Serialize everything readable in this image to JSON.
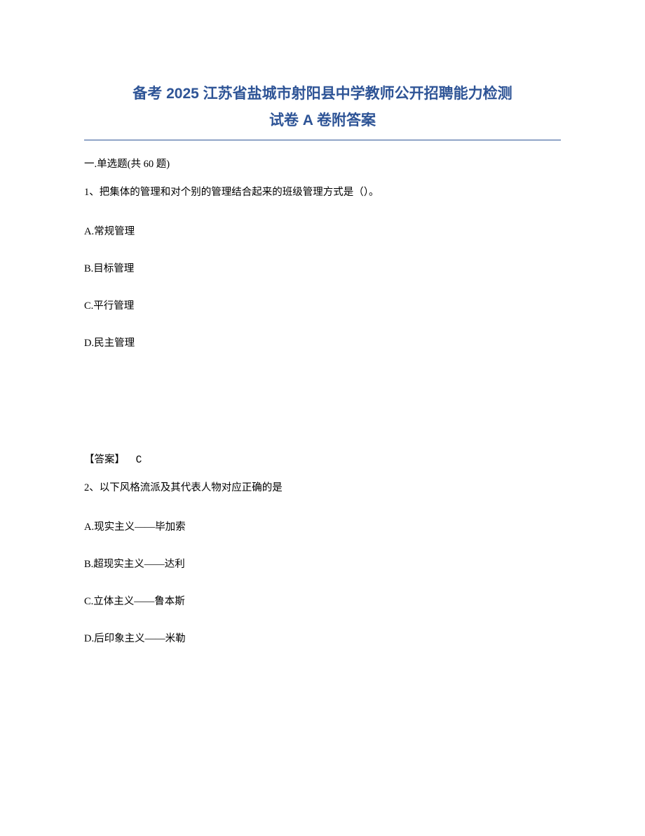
{
  "title": {
    "line1": "备考 2025 江苏省盐城市射阳县中学教师公开招聘能力检测",
    "line2": "试卷 A 卷附答案",
    "color": "#2e5496",
    "fontsize": 21
  },
  "section": {
    "header": "一.单选题(共 60 题)"
  },
  "questions": [
    {
      "number": "1",
      "text": "1、把集体的管理和对个别的管理结合起来的班级管理方式是（）。",
      "options": {
        "A": "A.常规管理",
        "B": "B.目标管理",
        "C": "C.平行管理",
        "D": "D.民主管理"
      },
      "answer_label": "【答案】",
      "answer_value": "C"
    },
    {
      "number": "2",
      "text": "2、以下风格流派及其代表人物对应正确的是",
      "options": {
        "A": "A.现实主义——毕加索",
        "B": "B.超现实主义——达利",
        "C": "C.立体主义——鲁本斯",
        "D": "D.后印象主义——米勒"
      }
    }
  ],
  "style": {
    "body_fontsize": 14.5,
    "text_color": "#000000",
    "background_color": "#ffffff",
    "option_spacing": 32,
    "answer_top_margin": 145
  }
}
